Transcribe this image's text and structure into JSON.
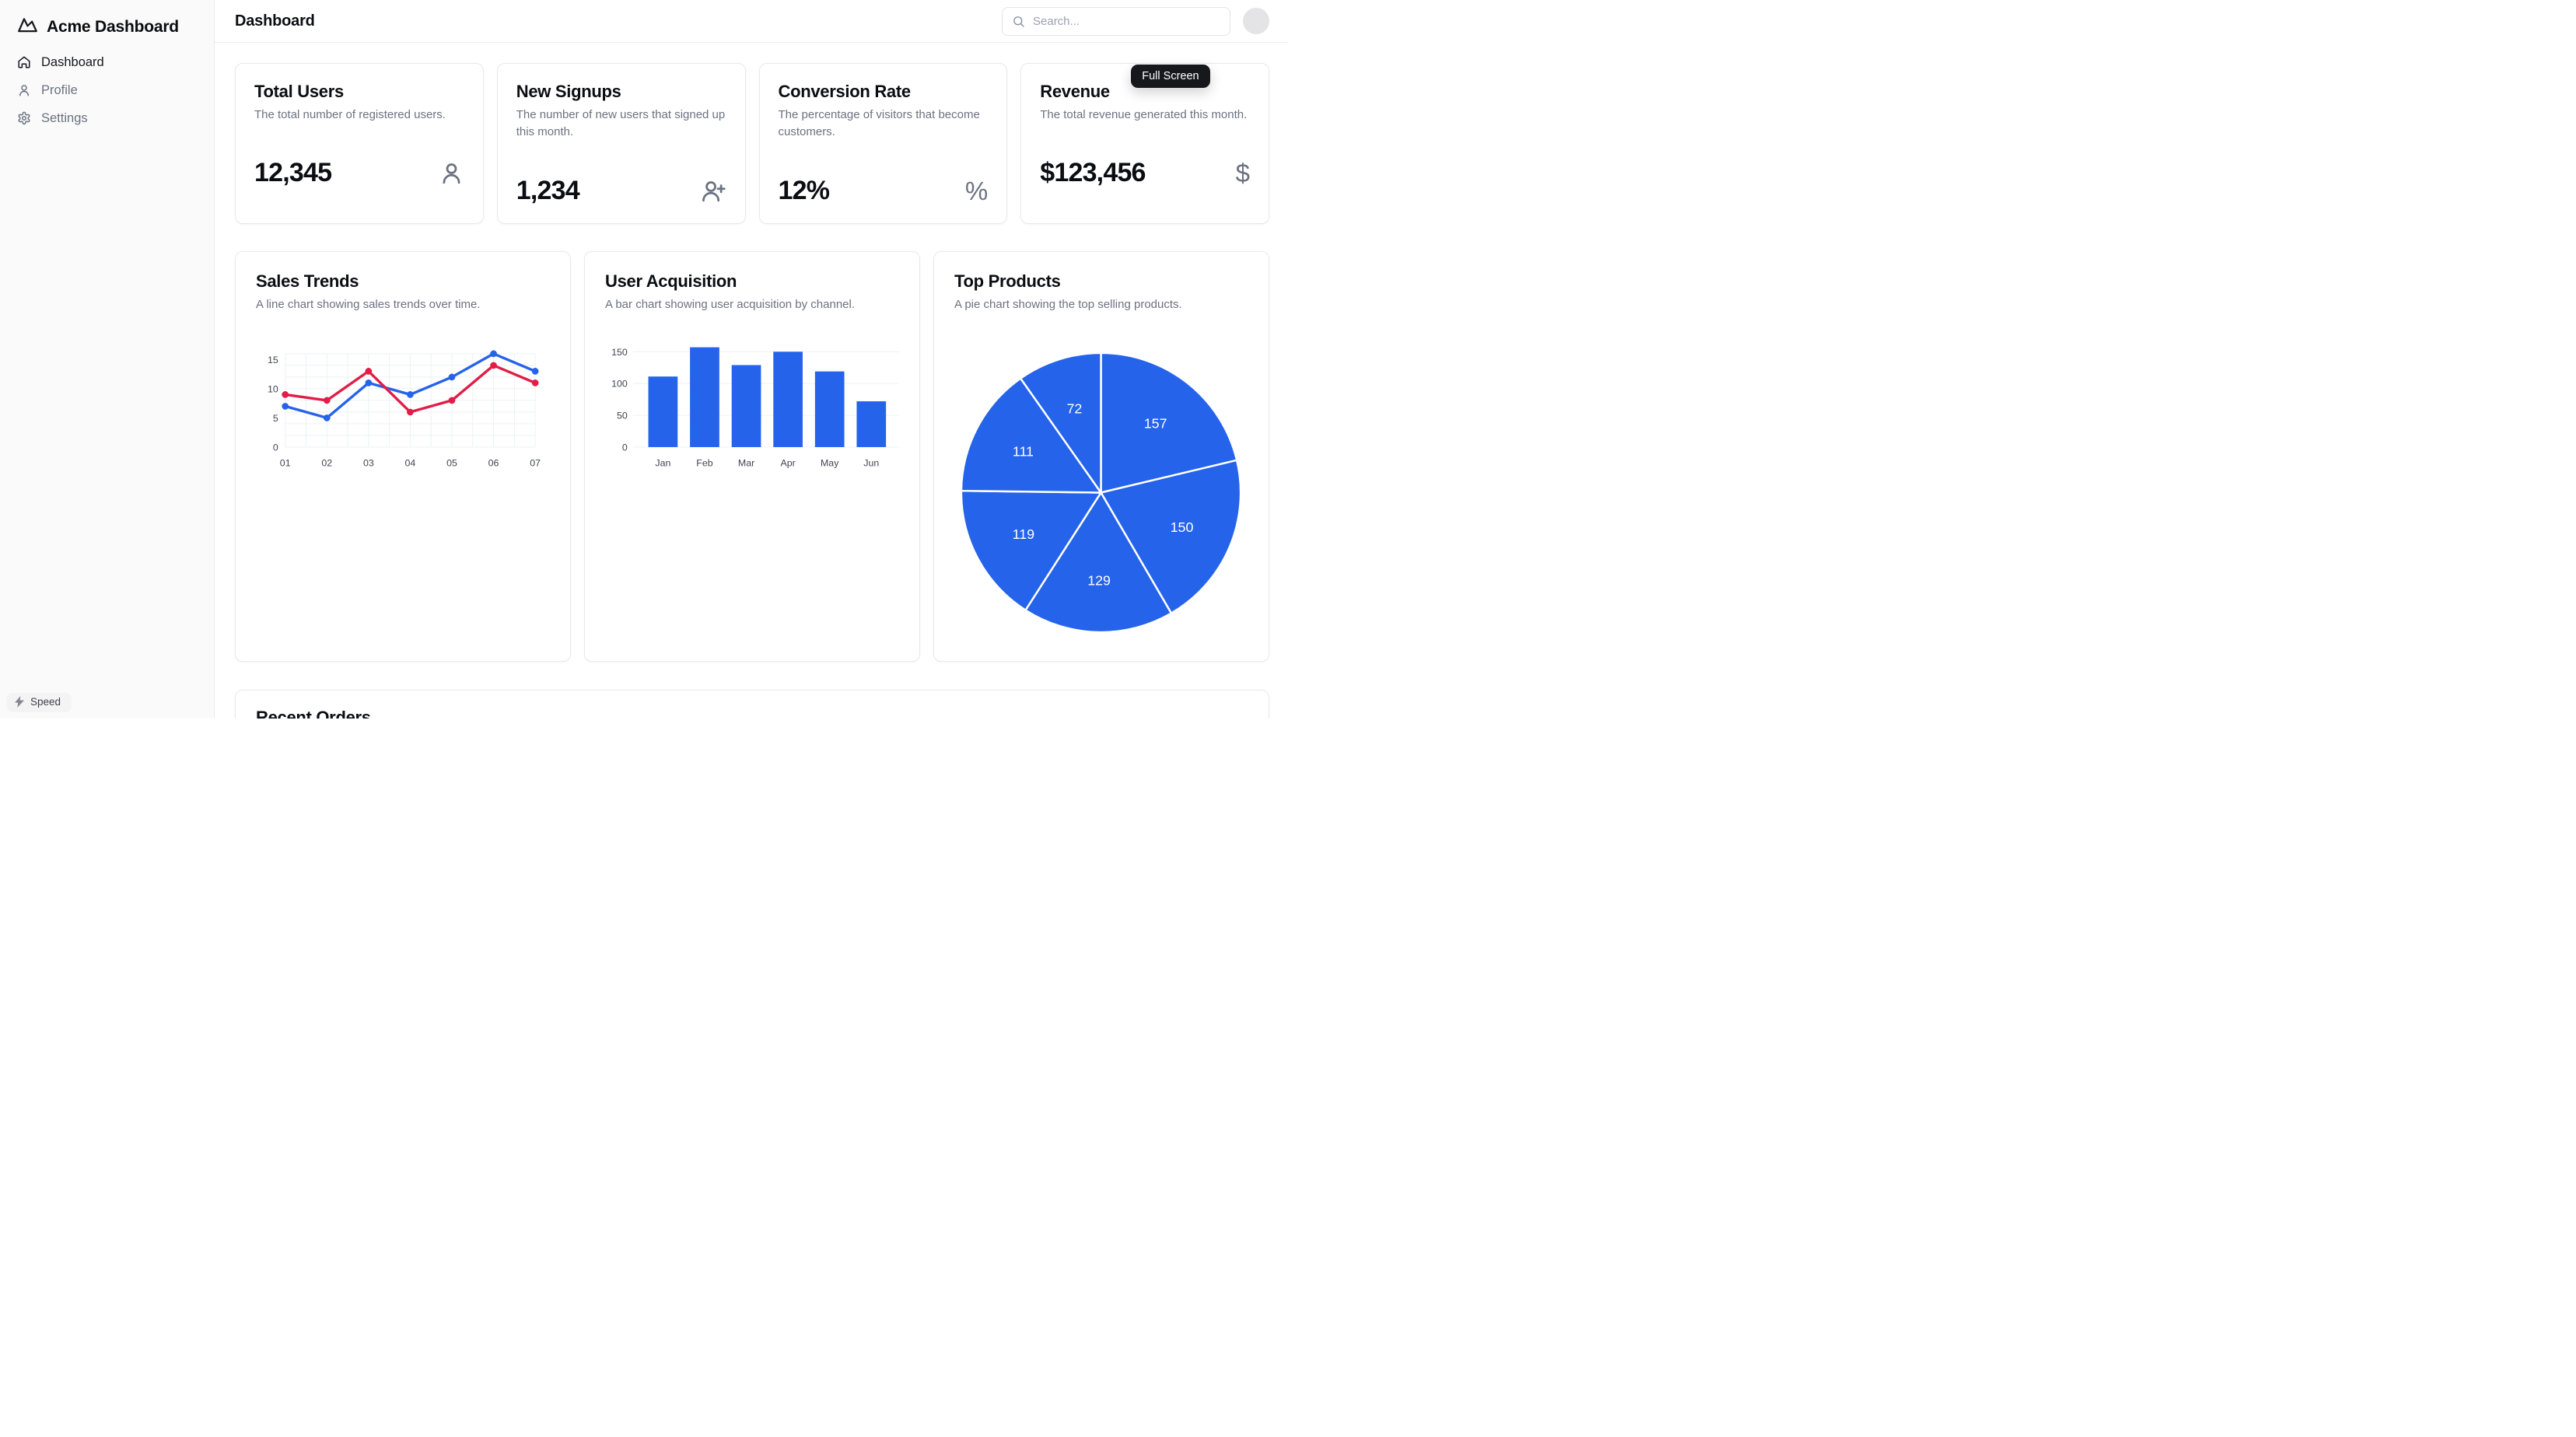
{
  "app": {
    "name": "Acme Dashboard"
  },
  "sidebar": {
    "items": [
      {
        "label": "Dashboard",
        "icon": "home-icon",
        "active": true
      },
      {
        "label": "Profile",
        "icon": "user-icon",
        "active": false
      },
      {
        "label": "Settings",
        "icon": "settings-icon",
        "active": false
      }
    ],
    "badge": {
      "label": "Speed",
      "icon": "lightning-icon"
    }
  },
  "header": {
    "title": "Dashboard",
    "search": {
      "placeholder": "Search...",
      "icon": "search-icon"
    }
  },
  "tooltip": {
    "label": "Full Screen"
  },
  "stats": [
    {
      "title": "Total Users",
      "description": "The total number of registered users.",
      "value": "12,345",
      "icon": "user-icon"
    },
    {
      "title": "New Signups",
      "description": "The number of new users that signed up this month.",
      "value": "1,234",
      "icon": "user-plus-icon"
    },
    {
      "title": "Conversion Rate",
      "description": "The percentage of visitors that become customers.",
      "value": "12%",
      "icon": "percent-icon",
      "glyph": "%"
    },
    {
      "title": "Revenue",
      "description": "The total revenue generated this month.",
      "value": "$123,456",
      "icon": "dollar-icon",
      "glyph": "$"
    }
  ],
  "sections": {
    "recent_orders_title": "Recent Orders"
  },
  "colors": {
    "accent_blue": "#2563eb",
    "series_red": "#e11d48",
    "tooltip_bg": "#17181c",
    "muted_text": "#6b7280",
    "grid_line": "#eef0f3"
  },
  "chart_data": [
    {
      "type": "line",
      "title": "Sales Trends",
      "subtitle": "A line chart showing sales trends over time.",
      "x": [
        "01",
        "02",
        "03",
        "04",
        "05",
        "06",
        "07"
      ],
      "series": [
        {
          "name": "series-blue",
          "color": "#2563eb",
          "values": [
            7,
            5,
            11,
            9,
            12,
            16,
            13
          ]
        },
        {
          "name": "series-red",
          "color": "#e11d48",
          "values": [
            9,
            8,
            13,
            6,
            8,
            14,
            11
          ]
        }
      ],
      "xlabel": "",
      "ylabel": "",
      "ylim": [
        0,
        16
      ],
      "yticks": [
        0,
        5,
        10,
        15
      ],
      "grid": true,
      "legend": "none"
    },
    {
      "type": "bar",
      "title": "User Acquisition",
      "subtitle": "A bar chart showing user acquisition by channel.",
      "categories": [
        "Jan",
        "Feb",
        "Mar",
        "Apr",
        "May",
        "Jun"
      ],
      "values": [
        111,
        157,
        129,
        150,
        119,
        72
      ],
      "color": "#2563eb",
      "xlabel": "",
      "ylabel": "",
      "ylim": [
        0,
        157
      ],
      "yticks": [
        0,
        50,
        100,
        150
      ],
      "grid": "horizontal",
      "legend": "none"
    },
    {
      "type": "pie",
      "title": "Top Products",
      "subtitle": "A pie chart showing the top selling products.",
      "values": [
        157,
        150,
        129,
        119,
        111,
        72
      ],
      "color": "#2563eb",
      "slice_border_color": "#ffffff",
      "start_angle_deg": 0,
      "direction": "clockwise",
      "labels": "values",
      "legend": "none"
    }
  ]
}
